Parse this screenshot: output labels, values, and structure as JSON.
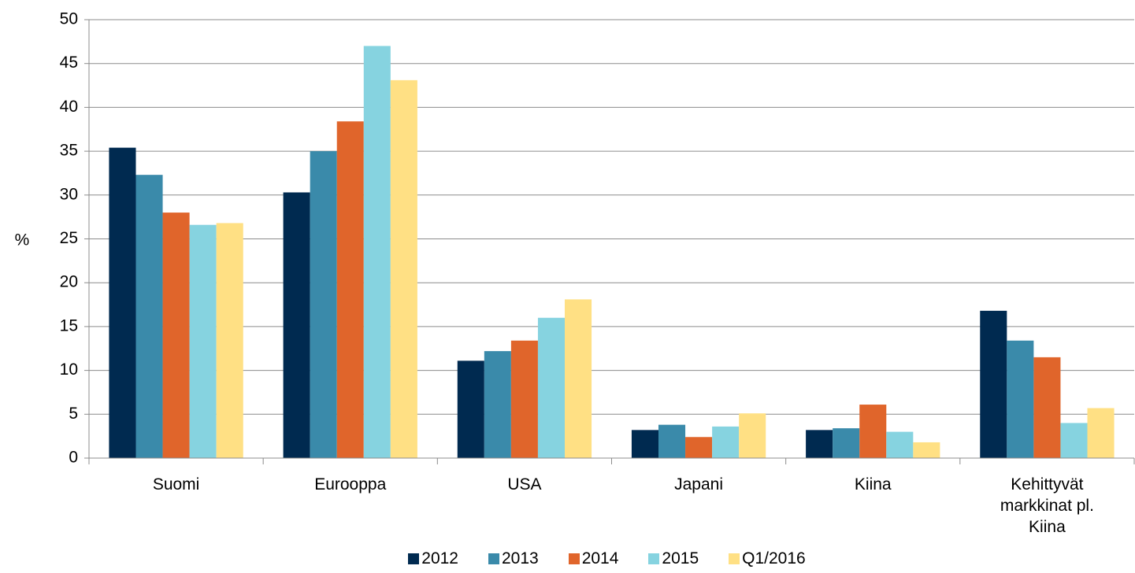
{
  "chart_data": {
    "type": "bar",
    "y_label": "%",
    "categories": [
      "Suomi",
      "Eurooppa",
      "USA",
      "Japani",
      "Kiina",
      "Kehittyvät markkinat pl. Kiina"
    ],
    "series": [
      {
        "name": "2012",
        "color": "#002a50",
        "values": [
          35.4,
          30.3,
          11.1,
          3.2,
          3.2,
          16.8
        ]
      },
      {
        "name": "2013",
        "color": "#3a8aaa",
        "values": [
          32.3,
          35.0,
          12.2,
          3.8,
          3.4,
          13.4
        ]
      },
      {
        "name": "2014",
        "color": "#e0652b",
        "values": [
          28.0,
          38.4,
          13.4,
          2.4,
          6.1,
          11.5
        ]
      },
      {
        "name": "2015",
        "color": "#86d3e0",
        "values": [
          26.6,
          47.0,
          16.0,
          3.6,
          3.0,
          4.0
        ]
      },
      {
        "name": "Q1/2016",
        "color": "#ffe084",
        "values": [
          26.8,
          43.1,
          18.1,
          5.1,
          1.8,
          5.7
        ]
      }
    ],
    "ylim": [
      0,
      50
    ],
    "yticks": [
      0,
      5,
      10,
      15,
      20,
      25,
      30,
      35,
      40,
      45,
      50
    ],
    "grid": true
  }
}
